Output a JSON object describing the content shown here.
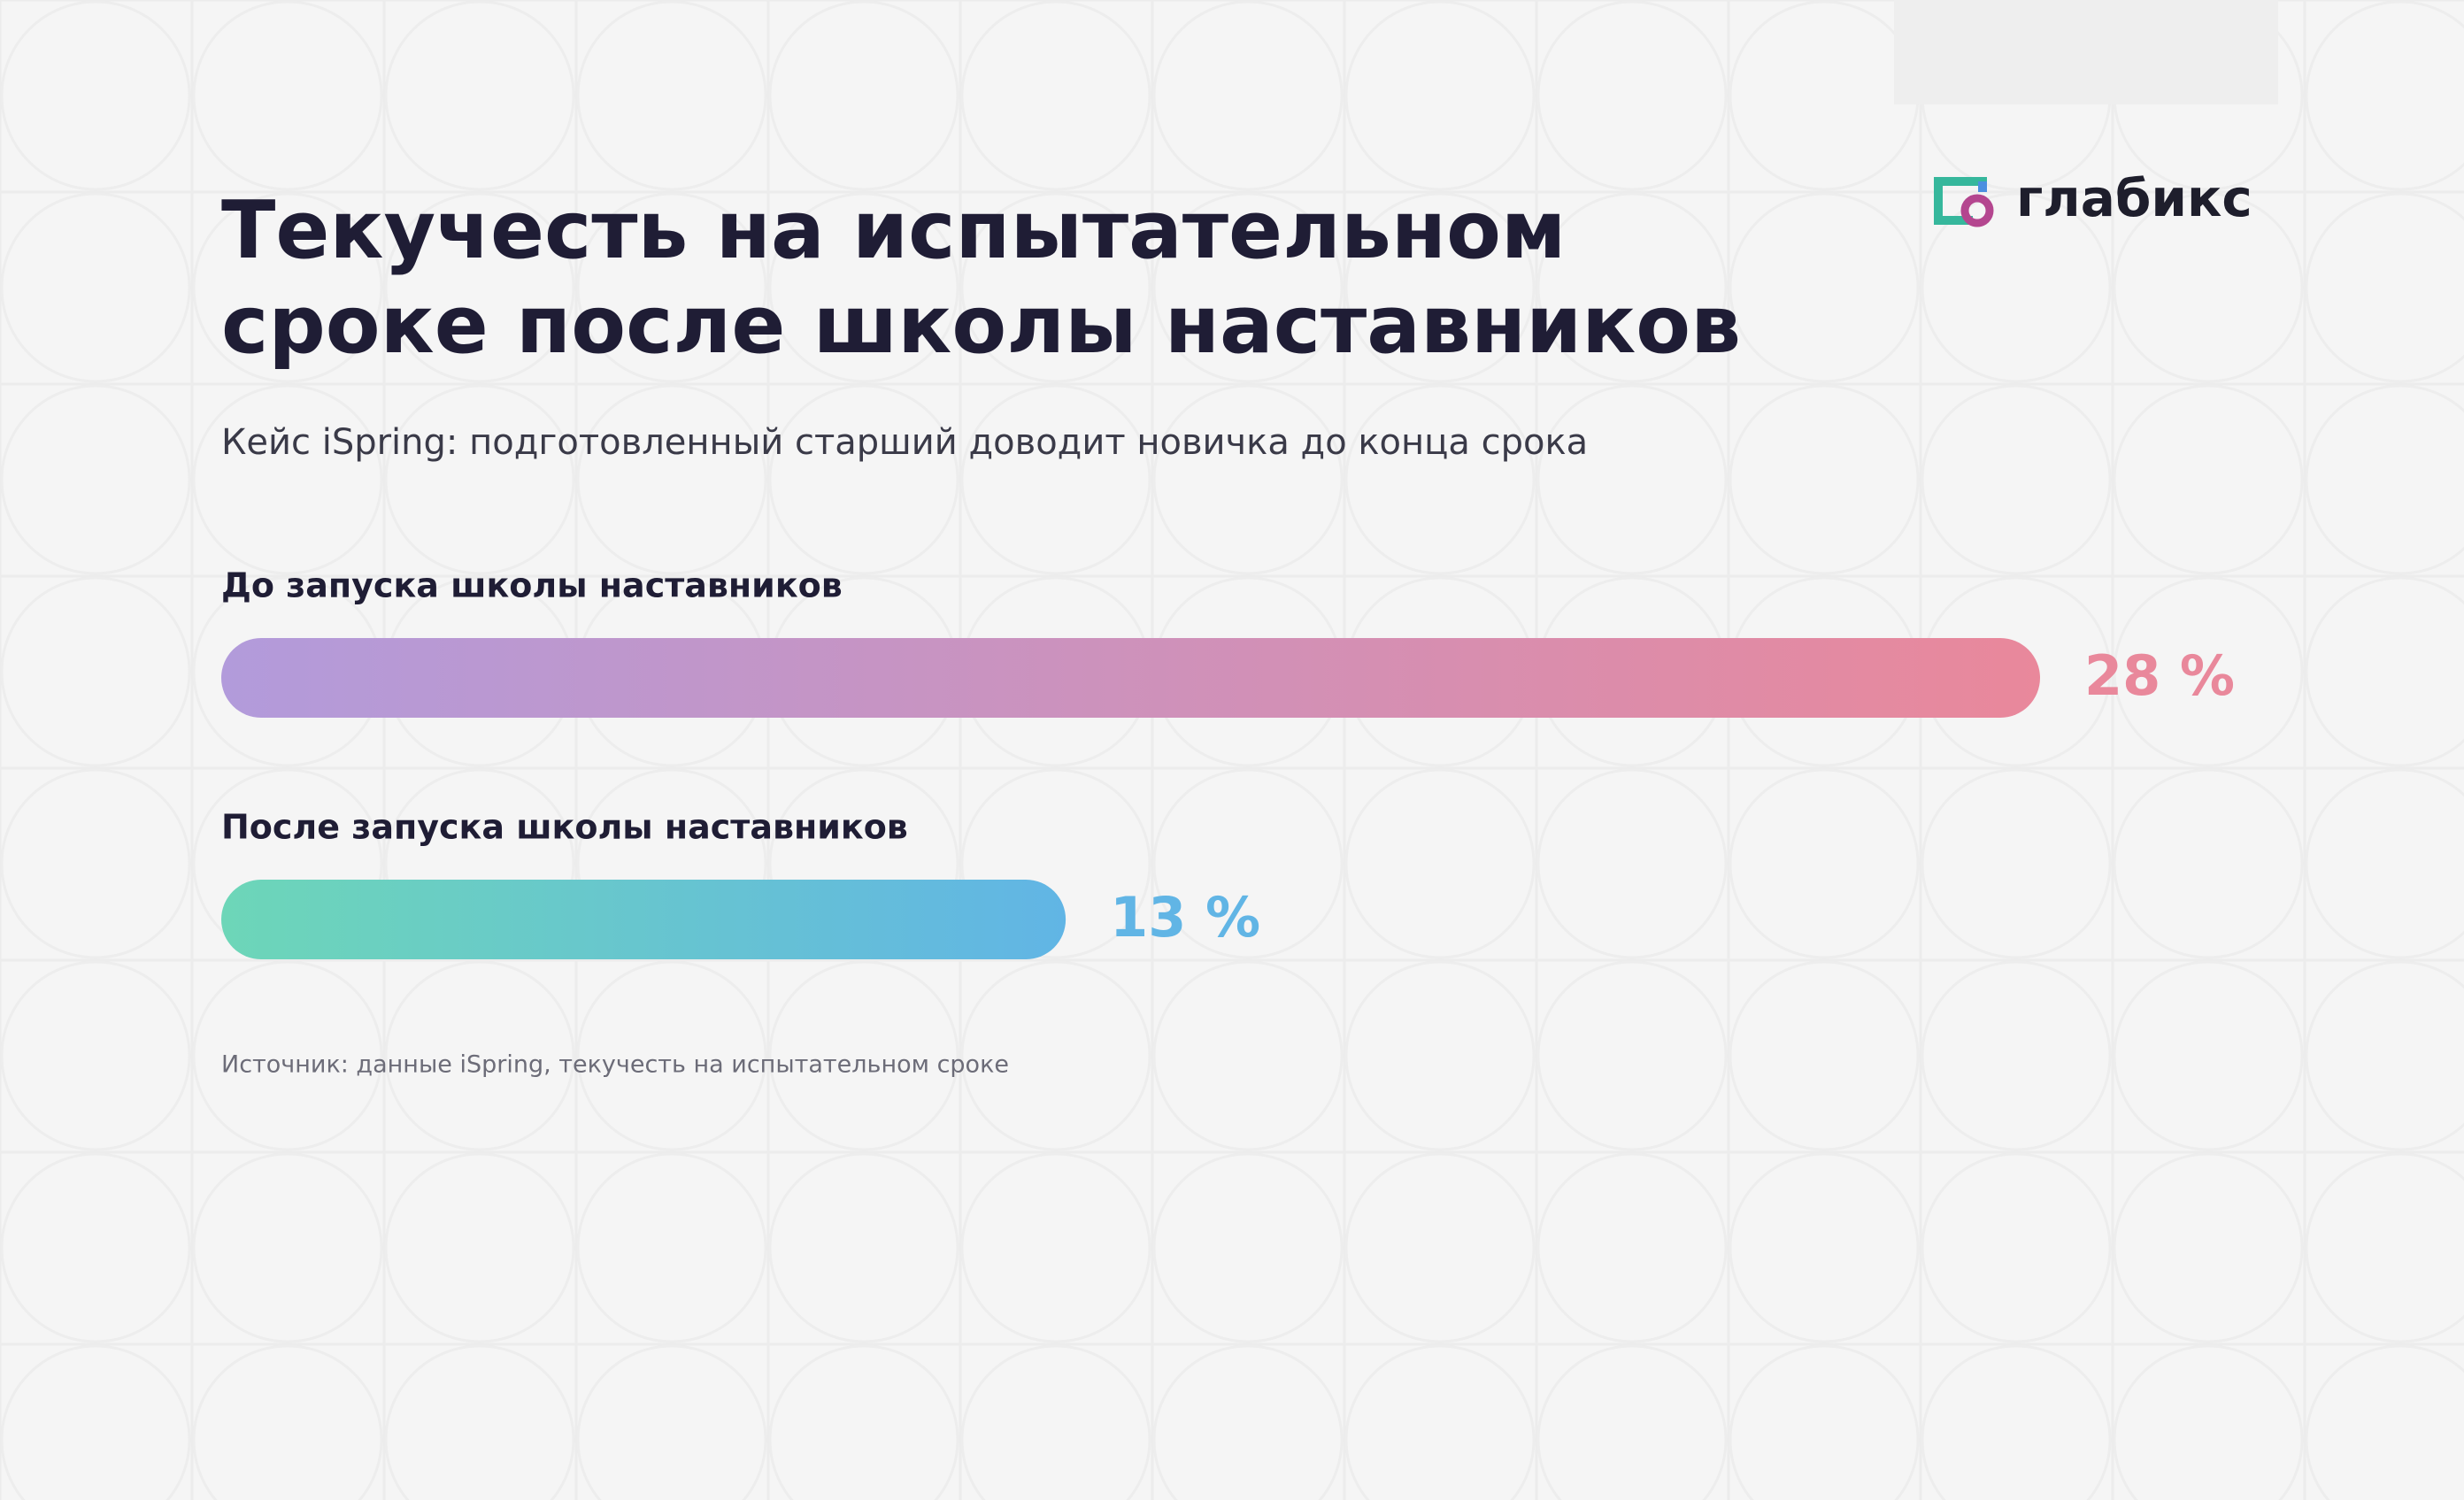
{
  "chart_data": {
    "type": "hbar",
    "title": [
      "Текучесть на испытательном",
      "сроке после школы наставников"
    ],
    "subtitle": "Кейс iSpring: подготовленный старший доводит новичка до конца срока",
    "brand": "глабикс",
    "categories": [
      "До запуска школы наставников",
      "После запуска школы наставников"
    ],
    "values": [
      28,
      13
    ],
    "value_labels": [
      "28 %",
      "13 %"
    ],
    "colors": [
      [
        "#b29bdb",
        "#e9889b"
      ],
      [
        "#6dd6b8",
        "#61b5e5"
      ]
    ],
    "source": "Источник: данные iSpring, текучесть на испытательном сроке"
  }
}
